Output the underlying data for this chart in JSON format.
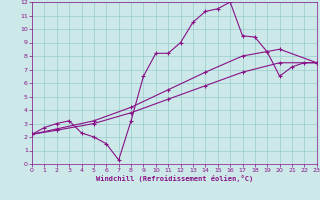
{
  "background_color": "#cce8e8",
  "grid_color": "#99cccc",
  "line_color": "#881188",
  "xlabel": "Windchill (Refroidissement éolien,°C)",
  "xlim": [
    0,
    23
  ],
  "ylim": [
    0,
    12
  ],
  "xticks": [
    0,
    1,
    2,
    3,
    4,
    5,
    6,
    7,
    8,
    9,
    10,
    11,
    12,
    13,
    14,
    15,
    16,
    17,
    18,
    19,
    20,
    21,
    22,
    23
  ],
  "yticks": [
    0,
    1,
    2,
    3,
    4,
    5,
    6,
    7,
    8,
    9,
    10,
    11,
    12
  ],
  "line1": {
    "x": [
      0,
      1,
      2,
      3,
      4,
      5,
      6,
      7,
      8,
      9,
      10,
      11,
      12,
      13,
      14,
      15,
      16,
      17,
      18,
      19,
      20,
      21,
      22,
      23
    ],
    "y": [
      2.2,
      2.7,
      3.0,
      3.2,
      2.3,
      2.0,
      1.5,
      0.3,
      3.2,
      6.5,
      8.2,
      8.2,
      9.0,
      10.5,
      11.3,
      11.5,
      12.0,
      9.5,
      9.4,
      8.3,
      6.5,
      7.2,
      7.5,
      7.5
    ]
  },
  "line2": {
    "x": [
      0,
      2,
      5,
      8,
      11,
      14,
      17,
      20,
      23
    ],
    "y": [
      2.2,
      2.5,
      3.0,
      3.8,
      4.8,
      5.8,
      6.8,
      7.5,
      7.5
    ]
  },
  "line3": {
    "x": [
      0,
      2,
      5,
      8,
      11,
      14,
      17,
      20,
      23
    ],
    "y": [
      2.2,
      2.6,
      3.2,
      4.2,
      5.5,
      6.8,
      8.0,
      8.5,
      7.5
    ]
  }
}
